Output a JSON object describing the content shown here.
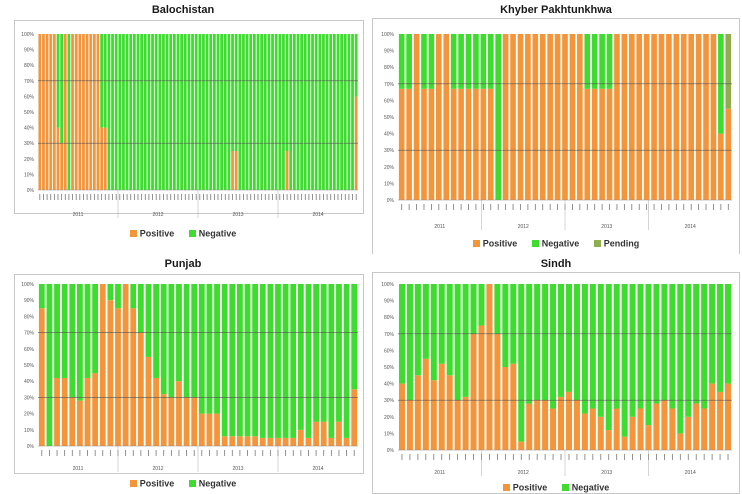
{
  "colors": {
    "positive": "#f5953a",
    "negative": "#3ddc2e",
    "pending": "#8fad4d"
  },
  "charts": [
    {
      "title": "Balochistan",
      "legend": [
        "Positive",
        "Negative"
      ]
    },
    {
      "title": "Khyber Pakhtunkhwa",
      "legend": [
        "Positive",
        "Negative",
        "Pending"
      ]
    },
    {
      "title": "Punjab",
      "legend": [
        "Positive",
        "Negative"
      ]
    },
    {
      "title": "Sindh",
      "legend": [
        "Positive",
        "Negative"
      ]
    }
  ],
  "chart_data": [
    {
      "type": "bar",
      "stacked": true,
      "title": "Balochistan",
      "ylim": [
        0,
        100
      ],
      "yticks": [
        "0%",
        "10%",
        "20%",
        "30%",
        "40%",
        "50%",
        "60%",
        "70%",
        "80%",
        "90%",
        "100%"
      ],
      "year_labels": [
        "2011",
        "2012",
        "2013",
        "2014"
      ],
      "series": [
        {
          "name": "Positive",
          "values": [
            100,
            100,
            100,
            100,
            100,
            40,
            30,
            100,
            0,
            100,
            100,
            100,
            100,
            100,
            100,
            100,
            100,
            40,
            40,
            0,
            0,
            0,
            0,
            0,
            0,
            0,
            0,
            0,
            0,
            0,
            0,
            0,
            0,
            0,
            0,
            0,
            0,
            0,
            0,
            0,
            0,
            0,
            0,
            0,
            0,
            0,
            0,
            0,
            0,
            0,
            0,
            0,
            0,
            25,
            25,
            0,
            0,
            0,
            0,
            0,
            0,
            0,
            0,
            0,
            0,
            0,
            0,
            0,
            25,
            0,
            0,
            0,
            0,
            0,
            0,
            0,
            0,
            0,
            0,
            0,
            0,
            0,
            0,
            0,
            0,
            0,
            0,
            60
          ]
        },
        {
          "name": "Negative",
          "values": [
            0,
            0,
            0,
            0,
            0,
            60,
            70,
            0,
            100,
            0,
            0,
            0,
            0,
            0,
            0,
            0,
            0,
            60,
            60,
            100,
            100,
            100,
            100,
            100,
            100,
            100,
            100,
            100,
            100,
            100,
            100,
            100,
            100,
            100,
            100,
            100,
            100,
            100,
            100,
            100,
            100,
            100,
            100,
            100,
            100,
            100,
            100,
            100,
            100,
            100,
            100,
            100,
            100,
            75,
            75,
            100,
            100,
            100,
            100,
            100,
            100,
            100,
            100,
            100,
            100,
            100,
            100,
            100,
            75,
            100,
            100,
            100,
            100,
            100,
            100,
            100,
            100,
            100,
            100,
            100,
            100,
            100,
            100,
            100,
            100,
            100,
            100,
            40
          ]
        }
      ]
    },
    {
      "type": "bar",
      "stacked": true,
      "title": "Khyber Pakhtunkhwa",
      "ylim": [
        0,
        100
      ],
      "yticks": [
        "0%",
        "10%",
        "20%",
        "30%",
        "40%",
        "50%",
        "60%",
        "70%",
        "80%",
        "90%",
        "100%"
      ],
      "year_labels": [
        "2011",
        "2012",
        "2013",
        "2014"
      ],
      "series": [
        {
          "name": "Positive",
          "values": [
            67,
            67,
            100,
            67,
            67,
            100,
            100,
            67,
            67,
            67,
            67,
            67,
            67,
            0,
            100,
            100,
            100,
            100,
            100,
            100,
            100,
            100,
            100,
            100,
            100,
            67,
            67,
            67,
            67,
            100,
            100,
            100,
            100,
            100,
            100,
            100,
            100,
            100,
            100,
            100,
            100,
            100,
            100,
            40,
            55
          ]
        },
        {
          "name": "Negative",
          "values": [
            33,
            33,
            0,
            33,
            33,
            0,
            0,
            33,
            33,
            33,
            33,
            33,
            33,
            100,
            0,
            0,
            0,
            0,
            0,
            0,
            0,
            0,
            0,
            0,
            0,
            33,
            33,
            33,
            33,
            0,
            0,
            0,
            0,
            0,
            0,
            0,
            0,
            0,
            0,
            0,
            0,
            0,
            0,
            60,
            0
          ]
        },
        {
          "name": "Pending",
          "values": [
            0,
            0,
            0,
            0,
            0,
            0,
            0,
            0,
            0,
            0,
            0,
            0,
            0,
            0,
            0,
            0,
            0,
            0,
            0,
            0,
            0,
            0,
            0,
            0,
            0,
            0,
            0,
            0,
            0,
            0,
            0,
            0,
            0,
            0,
            0,
            0,
            0,
            0,
            0,
            0,
            0,
            0,
            0,
            0,
            45
          ]
        }
      ]
    },
    {
      "type": "bar",
      "stacked": true,
      "title": "Punjab",
      "ylim": [
        0,
        100
      ],
      "yticks": [
        "0%",
        "10%",
        "20%",
        "30%",
        "40%",
        "50%",
        "60%",
        "70%",
        "80%",
        "90%",
        "100%"
      ],
      "year_labels": [
        "2011",
        "2012",
        "2013",
        "2014"
      ],
      "series": [
        {
          "name": "Positive",
          "values": [
            85,
            0,
            42,
            42,
            30,
            28,
            42,
            45,
            100,
            90,
            85,
            100,
            85,
            70,
            55,
            42,
            32,
            30,
            40,
            30,
            30,
            20,
            20,
            20,
            6,
            6,
            6,
            6,
            6,
            5,
            5,
            5,
            5,
            5,
            10,
            5,
            15,
            15,
            5,
            15,
            5,
            35
          ]
        },
        {
          "name": "Negative",
          "values": [
            15,
            100,
            58,
            58,
            70,
            72,
            58,
            55,
            0,
            10,
            15,
            0,
            15,
            30,
            45,
            58,
            68,
            70,
            60,
            70,
            70,
            80,
            80,
            80,
            94,
            94,
            94,
            94,
            94,
            95,
            95,
            95,
            95,
            95,
            90,
            95,
            85,
            85,
            95,
            85,
            95,
            65
          ]
        }
      ]
    },
    {
      "type": "bar",
      "stacked": true,
      "title": "Sindh",
      "ylim": [
        0,
        100
      ],
      "yticks": [
        "0%",
        "10%",
        "20%",
        "30%",
        "40%",
        "50%",
        "60%",
        "70%",
        "80%",
        "90%",
        "100%"
      ],
      "year_labels": [
        "2011",
        "2012",
        "2013",
        "2014"
      ],
      "series": [
        {
          "name": "Positive",
          "values": [
            40,
            30,
            45,
            55,
            42,
            52,
            45,
            30,
            32,
            70,
            75,
            100,
            70,
            50,
            52,
            5,
            28,
            30,
            30,
            25,
            32,
            35,
            30,
            22,
            25,
            20,
            12,
            25,
            8,
            20,
            25,
            15,
            28,
            30,
            25,
            10,
            20,
            28,
            25,
            40,
            35,
            40
          ]
        },
        {
          "name": "Negative",
          "values": [
            60,
            70,
            55,
            45,
            58,
            48,
            55,
            70,
            68,
            30,
            25,
            0,
            30,
            50,
            48,
            95,
            72,
            70,
            70,
            75,
            68,
            65,
            70,
            78,
            75,
            80,
            88,
            75,
            92,
            80,
            75,
            85,
            72,
            70,
            75,
            90,
            80,
            72,
            75,
            60,
            65,
            60
          ]
        }
      ]
    }
  ]
}
